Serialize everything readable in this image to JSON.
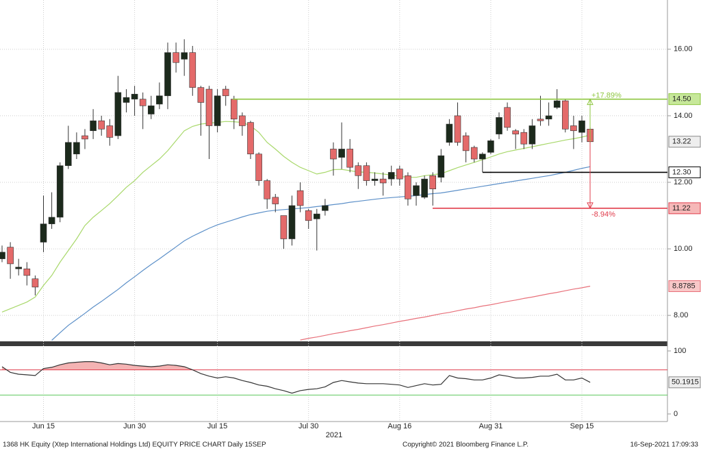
{
  "chart_data": [
    {
      "type": "candlestick",
      "categories": [
        null,
        null,
        null,
        null,
        null,
        "Jun 15",
        null,
        null,
        null,
        null,
        null,
        null,
        null,
        null,
        null,
        null,
        "Jun 30",
        null,
        null,
        null,
        null,
        null,
        null,
        null,
        null,
        null,
        "Jul 15",
        null,
        null,
        null,
        null,
        null,
        null,
        null,
        null,
        null,
        null,
        "Jul 30",
        null,
        null,
        null,
        null,
        null,
        null,
        null,
        null,
        null,
        null,
        "Aug 16",
        null,
        null,
        null,
        null,
        null,
        null,
        null,
        null,
        null,
        null,
        "Aug 31",
        null,
        null,
        null,
        null,
        null,
        null,
        null,
        null,
        null,
        null,
        "Sep 15",
        null
      ],
      "xlabel": "2021",
      "open": [
        9.7,
        10.05,
        9.4,
        9.4,
        9.1,
        10.2,
        10.75,
        10.95,
        12.5,
        12.85,
        13.4,
        13.55,
        13.85,
        13.7,
        13.4,
        14.4,
        14.5,
        14.5,
        14.05,
        14.35,
        14.6,
        15.9,
        15.7,
        15.9,
        14.85,
        14.8,
        13.7,
        14.8,
        14.5,
        14.0,
        13.8,
        12.85,
        12.05,
        11.55,
        11.0,
        10.3,
        11.75,
        11.15,
        10.9,
        11.15,
        13.0,
        12.75,
        13.0,
        12.5,
        12.5,
        12.05,
        12.1,
        12.1,
        12.4,
        12.2,
        11.6,
        11.55,
        12.2,
        12.15,
        13.2,
        14.0,
        13.4,
        13.05,
        12.7,
        12.9,
        13.45,
        14.25,
        13.55,
        13.5,
        13.15,
        13.9,
        13.9,
        14.25,
        14.45,
        13.7,
        13.5,
        13.6
      ],
      "high": [
        10.1,
        10.2,
        9.7,
        9.6,
        9.2,
        11.6,
        11.7,
        12.6,
        13.7,
        13.5,
        13.6,
        14.2,
        14.0,
        13.9,
        15.2,
        14.8,
        14.9,
        14.7,
        14.6,
        15.0,
        16.2,
        16.2,
        16.3,
        16.1,
        14.9,
        14.9,
        14.8,
        14.9,
        14.6,
        14.1,
        13.85,
        12.9,
        12.1,
        11.65,
        11.0,
        11.6,
        12.0,
        11.2,
        11.2,
        11.5,
        13.2,
        13.8,
        13.3,
        12.6,
        12.6,
        12.3,
        12.3,
        12.5,
        12.5,
        12.3,
        12.0,
        12.2,
        12.3,
        13.0,
        13.9,
        14.4,
        13.5,
        13.1,
        12.9,
        13.3,
        14.1,
        14.4,
        13.6,
        13.6,
        13.9,
        14.6,
        14.4,
        14.8,
        14.5,
        14.0,
        14.0,
        13.65
      ],
      "low": [
        9.6,
        9.1,
        9.2,
        8.9,
        8.6,
        9.9,
        10.6,
        10.8,
        12.4,
        12.7,
        13.0,
        13.3,
        13.4,
        13.1,
        13.3,
        14.1,
        14.0,
        13.6,
        13.9,
        14.2,
        14.2,
        15.3,
        15.2,
        14.6,
        13.4,
        12.7,
        13.5,
        14.3,
        13.6,
        13.4,
        12.7,
        11.9,
        11.2,
        11.1,
        10.0,
        10.1,
        11.1,
        10.6,
        9.95,
        11.0,
        12.2,
        12.4,
        12.3,
        11.8,
        11.9,
        11.9,
        11.6,
        11.9,
        11.9,
        11.3,
        11.3,
        11.5,
        11.3,
        12.0,
        13.1,
        13.1,
        12.6,
        12.6,
        12.3,
        12.85,
        13.3,
        13.55,
        13.0,
        13.0,
        13.0,
        13.7,
        13.7,
        14.2,
        13.5,
        13.0,
        13.2,
        13.2
      ],
      "close": [
        9.9,
        9.55,
        9.45,
        9.2,
        8.85,
        10.75,
        10.95,
        12.5,
        13.2,
        13.2,
        13.3,
        13.85,
        13.6,
        13.35,
        14.7,
        14.55,
        14.65,
        14.3,
        14.3,
        14.6,
        15.9,
        15.6,
        15.9,
        14.85,
        14.4,
        13.7,
        14.6,
        14.6,
        13.9,
        13.7,
        12.85,
        12.05,
        11.5,
        11.35,
        10.3,
        11.3,
        11.3,
        10.85,
        11.05,
        11.3,
        12.7,
        13.0,
        12.45,
        12.2,
        12.05,
        12.1,
        11.98,
        12.3,
        12.1,
        11.5,
        11.9,
        12.1,
        11.8,
        12.8,
        13.75,
        13.2,
        12.95,
        12.7,
        12.85,
        13.25,
        13.95,
        13.65,
        13.45,
        13.15,
        13.7,
        13.85,
        14.0,
        14.45,
        13.6,
        13.55,
        13.85,
        13.22
      ],
      "up_color": "#1c2a1c",
      "down_color": "#e46a6a",
      "series": [
        {
          "color": "#a8d86a",
          "values": [
            8.1,
            8.2,
            8.3,
            8.4,
            8.55,
            8.9,
            9.2,
            9.6,
            9.95,
            10.3,
            10.7,
            10.95,
            11.15,
            11.36,
            11.6,
            11.85,
            12.05,
            12.3,
            12.5,
            12.7,
            12.95,
            13.25,
            13.55,
            13.68,
            13.75,
            13.78,
            13.8,
            13.83,
            13.82,
            13.8,
            13.7,
            13.5,
            13.2,
            13.0,
            12.78,
            12.6,
            12.45,
            12.35,
            12.25,
            12.3,
            12.38,
            12.39,
            12.35,
            12.31,
            12.3,
            12.28,
            12.25,
            12.22,
            12.18,
            12.15,
            12.15,
            12.2,
            12.23,
            12.26,
            12.35,
            12.44,
            12.52,
            12.6,
            12.68,
            12.76,
            12.85,
            12.92,
            12.97,
            13.02,
            13.07,
            13.12,
            13.17,
            13.22,
            13.27,
            13.31,
            13.36,
            13.42
          ]
        },
        {
          "color": "#5b8fc8",
          "values": [
            null,
            null,
            null,
            null,
            null,
            null,
            7.25,
            7.48,
            7.7,
            7.88,
            8.06,
            8.25,
            8.42,
            8.6,
            8.78,
            8.98,
            9.16,
            9.35,
            9.53,
            9.7,
            9.88,
            10.06,
            10.24,
            10.38,
            10.5,
            10.62,
            10.72,
            10.8,
            10.88,
            10.96,
            11.03,
            11.08,
            11.13,
            11.16,
            11.18,
            11.2,
            11.22,
            11.24,
            11.27,
            11.3,
            11.33,
            11.36,
            11.4,
            11.43,
            11.46,
            11.49,
            11.52,
            11.54,
            11.56,
            11.58,
            11.6,
            11.63,
            11.66,
            11.68,
            11.72,
            11.76,
            11.8,
            11.84,
            11.88,
            11.92,
            11.96,
            12.0,
            12.04,
            12.08,
            12.12,
            12.16,
            12.2,
            12.25,
            12.3,
            12.36,
            12.42,
            12.47
          ]
        },
        {
          "color": "#e8707a",
          "tag": true,
          "values": [
            null,
            null,
            null,
            null,
            null,
            null,
            null,
            null,
            null,
            null,
            null,
            null,
            null,
            null,
            null,
            null,
            null,
            null,
            null,
            null,
            null,
            null,
            null,
            null,
            null,
            null,
            null,
            null,
            null,
            null,
            null,
            null,
            null,
            null,
            null,
            null,
            7.26,
            7.31,
            7.35,
            7.4,
            7.45,
            7.49,
            7.54,
            7.58,
            7.63,
            7.68,
            7.72,
            7.77,
            7.82,
            7.86,
            7.91,
            7.95,
            8.0,
            8.05,
            8.09,
            8.14,
            8.19,
            8.23,
            8.28,
            8.32,
            8.37,
            8.42,
            8.46,
            8.51,
            8.55,
            8.6,
            8.65,
            8.69,
            8.74,
            8.79,
            8.83,
            8.8785
          ]
        }
      ],
      "levels": [
        {
          "value": 14.5,
          "label": "14.50",
          "color": "#8dc63f"
        },
        {
          "value": 12.3,
          "label": "12.30",
          "color": "#000000"
        },
        {
          "value": 11.22,
          "label": "11.22",
          "color": "#e03c4b"
        }
      ],
      "annotations": [
        {
          "text": "+17.89%",
          "color": "#8dc63f"
        },
        {
          "text": "-8.94%",
          "color": "#e03c4b"
        }
      ],
      "ylim": [
        7.22,
        17.48
      ],
      "yticks": [
        {
          "value": 8,
          "label": "8.00"
        },
        {
          "value": 10,
          "label": "10.00"
        },
        {
          "value": 12,
          "label": "12.00"
        },
        {
          "value": 14,
          "label": "14.00"
        },
        {
          "value": 16,
          "label": "16.00"
        }
      ],
      "grid": true
    },
    {
      "type": "line",
      "series": [
        {
          "color": "#333333",
          "fill": "#f4b3b3",
          "values": [
            75,
            66,
            63,
            62,
            61,
            72,
            74,
            78,
            81,
            82,
            83,
            83,
            81,
            78,
            80,
            79,
            77,
            76,
            75,
            76,
            78,
            77,
            75,
            70,
            64,
            60,
            57,
            59,
            57,
            53,
            50,
            46,
            44,
            40,
            37,
            33,
            37,
            39,
            40,
            43,
            50,
            53,
            51,
            49,
            48,
            48,
            48,
            47,
            46,
            42,
            45,
            48,
            46,
            47,
            61,
            57,
            56,
            54,
            54,
            57,
            62,
            60,
            57,
            57,
            58,
            60,
            60,
            63,
            54,
            54,
            57,
            50.1915
          ]
        }
      ],
      "hlines": [
        {
          "value": 70,
          "color": "#e03c4b"
        },
        {
          "value": 30,
          "color": "#5cc85c"
        }
      ],
      "ylim": [
        -12,
        107.6
      ],
      "yticks": [
        0,
        100
      ],
      "grid": true
    }
  ],
  "footer": {
    "left": "1368 HK Equity (Xtep International Holdings Ltd) EQUITY PRICE CHART  Daily 15SEP",
    "center": "Copyright© 2021 Bloomberg Finance L.P.",
    "right": "16-Sep-2021 17:09:33"
  }
}
